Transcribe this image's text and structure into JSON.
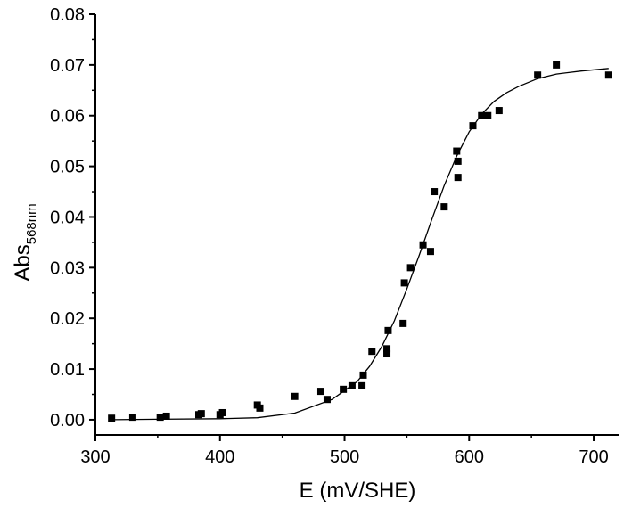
{
  "chart_data": {
    "type": "scatter",
    "xlabel": "E (mV/SHE)",
    "ylabel": {
      "main": "Abs",
      "subscript": "568nm"
    },
    "xlim": [
      300,
      720
    ],
    "ylim": [
      -0.003,
      0.08
    ],
    "xticks": [
      300,
      400,
      500,
      600,
      700
    ],
    "xtick_labels": [
      "300",
      "400",
      "500",
      "600",
      "700"
    ],
    "yticks": [
      0.0,
      0.01,
      0.02,
      0.03,
      0.04,
      0.05,
      0.06,
      0.07,
      0.08
    ],
    "ytick_labels": [
      "0.00",
      "0.01",
      "0.02",
      "0.03",
      "0.04",
      "0.05",
      "0.06",
      "0.07",
      "0.08"
    ],
    "grid": false,
    "legend": "none",
    "marker_color": "#000000",
    "series": [
      {
        "kind": "points",
        "marker": "square",
        "x": [
          313,
          330,
          352,
          357,
          383,
          385,
          400,
          402,
          430,
          432,
          460,
          481,
          486,
          499,
          506,
          514,
          515,
          522,
          534,
          534,
          535,
          547,
          548,
          553,
          563,
          569,
          572,
          580,
          590,
          591,
          591,
          603,
          610,
          615,
          624,
          655,
          670,
          712
        ],
        "y": [
          0.0003,
          0.0005,
          0.0005,
          0.0007,
          0.001,
          0.0012,
          0.001,
          0.0014,
          0.0029,
          0.0023,
          0.0046,
          0.0056,
          0.004,
          0.006,
          0.0067,
          0.0067,
          0.0088,
          0.0135,
          0.013,
          0.014,
          0.0176,
          0.019,
          0.027,
          0.03,
          0.0345,
          0.0332,
          0.045,
          0.042,
          0.053,
          0.051,
          0.0478,
          0.058,
          0.06,
          0.06,
          0.061,
          0.068,
          0.07,
          0.068
        ]
      },
      {
        "kind": "fit-line",
        "x": [
          313,
          350,
          400,
          430,
          460,
          490,
          510,
          520,
          530,
          540,
          550,
          560,
          570,
          580,
          590,
          600,
          610,
          620,
          630,
          640,
          655,
          670,
          690,
          712
        ],
        "y": [
          0.0,
          0.0001,
          0.0002,
          0.0004,
          0.0013,
          0.004,
          0.0075,
          0.0105,
          0.0145,
          0.0195,
          0.0258,
          0.0325,
          0.0395,
          0.0462,
          0.052,
          0.0568,
          0.0603,
          0.0628,
          0.0645,
          0.0658,
          0.0673,
          0.0682,
          0.0688,
          0.0693
        ]
      }
    ]
  }
}
